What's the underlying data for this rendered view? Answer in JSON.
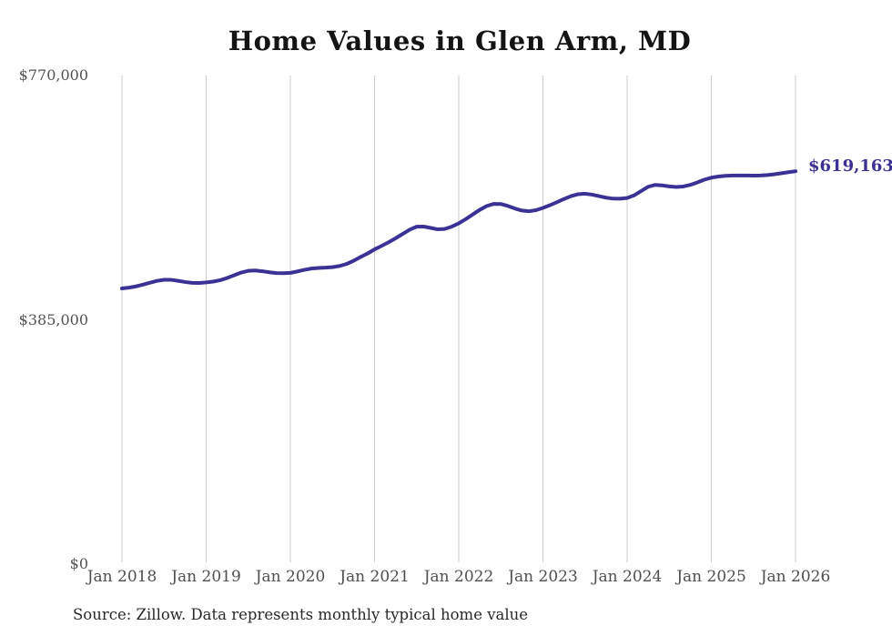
{
  "chart_data": {
    "type": "line",
    "title": "Home Values in Glen Arm, MD",
    "source_note": "Source: Zillow. Data represents monthly typical home value",
    "series_name": "Monthly typical home value",
    "end_label": "$619,163",
    "latest_value": 619163,
    "ylim": [
      0,
      770000
    ],
    "grid": "vertical-only",
    "legend": "none",
    "line_color": "#3b3295",
    "end_label_color": "#3a3192",
    "grid_color": "#cdcdcd",
    "y_ticks": [
      {
        "label": "$770,000",
        "value": 770000
      },
      {
        "label": "$385,000",
        "value": 385000
      },
      {
        "label": "$0",
        "value": 0
      }
    ],
    "x_tick_labels": [
      "Jan 2018",
      "Jan 2019",
      "Jan 2020",
      "Jan 2021",
      "Jan 2022",
      "Jan 2023",
      "Jan 2024",
      "Jan 2025",
      "Jan 2026"
    ],
    "x_start_month": "Jan 2018",
    "x_end_month": "Jan 2026",
    "months_per_point": 1,
    "monthly_values": [
      434500,
      435700,
      437700,
      440400,
      443500,
      446400,
      448100,
      448000,
      446500,
      444600,
      443200,
      443000,
      444000,
      445200,
      447500,
      451000,
      455300,
      459500,
      462200,
      462800,
      461600,
      459900,
      458700,
      458500,
      459000,
      461200,
      463800,
      465800,
      466800,
      467200,
      468000,
      469800,
      473000,
      478000,
      484000,
      489500,
      496000,
      501500,
      507300,
      513500,
      520300,
      527000,
      531800,
      532000,
      529800,
      527600,
      528200,
      531800,
      537000,
      543700,
      551000,
      558400,
      564400,
      567700,
      567500,
      564500,
      560400,
      557200,
      556100,
      557800,
      561400,
      565600,
      570400,
      575400,
      579900,
      582900,
      583700,
      582300,
      579900,
      577500,
      576000,
      575900,
      577000,
      581200,
      588000,
      594700,
      597600,
      596900,
      595300,
      594400,
      595100,
      597600,
      601500,
      605800,
      609000,
      610800,
      611900,
      612400,
      612500,
      612400,
      612300,
      612500,
      613200,
      614400,
      616000,
      617600,
      619163
    ]
  }
}
